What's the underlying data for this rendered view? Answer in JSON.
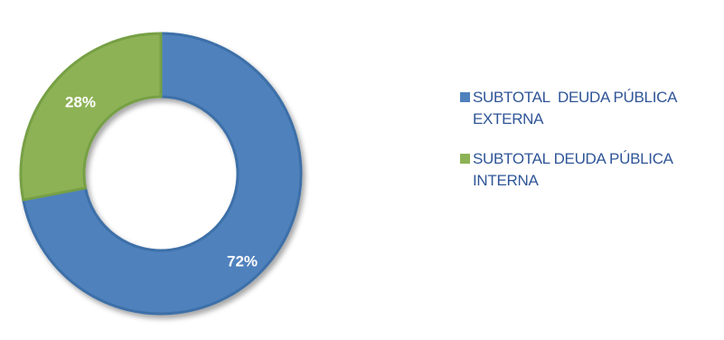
{
  "chart_data": {
    "type": "pie",
    "donut": true,
    "categories": [
      "SUBTOTAL  DEUDA PÚBLICA EXTERNA",
      "SUBTOTAL DEUDA PÚBLICA INTERNA"
    ],
    "values": [
      72,
      28
    ],
    "data_labels": [
      "72%",
      "28%"
    ],
    "colors": [
      "#4f81bd",
      "#8db255"
    ],
    "legend_position": "right",
    "title": ""
  },
  "legend": {
    "items": [
      {
        "label": "SUBTOTAL  DEUDA PÚBLICA EXTERNA",
        "color": "#4f81bd"
      },
      {
        "label": "SUBTOTAL DEUDA PÚBLICA INTERNA",
        "color": "#8db255"
      }
    ]
  }
}
